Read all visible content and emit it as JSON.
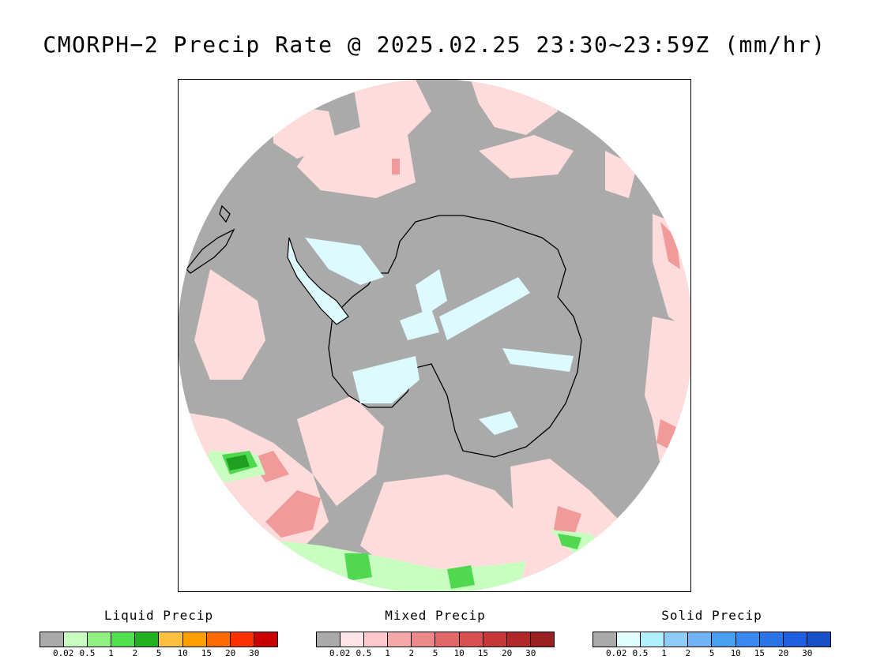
{
  "title": "CMORPH−2 Precip Rate @ 2025.02.25 23:30~23:59Z (mm/hr)",
  "map": {
    "no_precip_color": "#aaaaaa",
    "coastline_color": "#000000",
    "precip_colors": {
      "light_mixed": "#ffdcdc",
      "mixed": "#ffc0c0",
      "heavier_mixed": "#f09a9a",
      "solid_light": "#dcfaff",
      "liquid_light": "#c8ffc0",
      "liquid": "#50d850",
      "liquid_heavy": "#20a020"
    }
  },
  "legends": [
    {
      "title": "Liquid Precip",
      "colors": [
        "#aaaaaa",
        "#c8ffc0",
        "#90f080",
        "#50e050",
        "#20b020",
        "#ffc040",
        "#ffa000",
        "#ff6a00",
        "#ff3000",
        "#c80000"
      ],
      "labels": [
        "0.02",
        "0.5",
        "1",
        "2",
        "5",
        "10",
        "15",
        "20",
        "30"
      ]
    },
    {
      "title": "Mixed Precip",
      "colors": [
        "#aaaaaa",
        "#ffe4e8",
        "#ffc8cc",
        "#f4a8a8",
        "#ec8a8a",
        "#e06868",
        "#d85050",
        "#c83838",
        "#b02828",
        "#982020"
      ],
      "labels": [
        "0.02",
        "0.5",
        "1",
        "2",
        "5",
        "10",
        "15",
        "20",
        "30"
      ]
    },
    {
      "title": "Solid Precip",
      "colors": [
        "#aaaaaa",
        "#e0ffff",
        "#b0f0ff",
        "#90ccf8",
        "#70b4f4",
        "#4aa0f0",
        "#3a88f0",
        "#2a74e8",
        "#2060e0",
        "#1850c8"
      ],
      "labels": [
        "0.02",
        "0.5",
        "1",
        "2",
        "5",
        "10",
        "15",
        "20",
        "30"
      ]
    }
  ]
}
